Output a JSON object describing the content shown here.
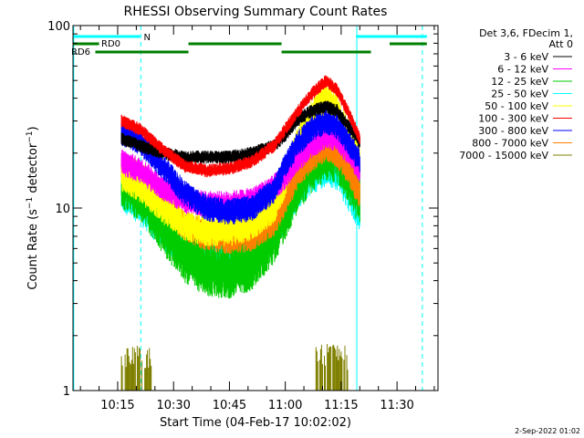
{
  "chart_data": {
    "type": "line",
    "title": "RHESSI Observing Summary Count Rates",
    "xlabel": "Start Time (04-Feb-17 10:02:02)",
    "ylabel": "Count Rate (s⁻¹ detector⁻¹)",
    "ylabel_parts": [
      "Count Rate (s",
      "−1",
      " detector",
      "−1",
      ")"
    ],
    "x_range_min": [
      3.0,
      101.0
    ],
    "x_ticks": [
      {
        "min": 15,
        "label": "10:15"
      },
      {
        "min": 30,
        "label": "10:30"
      },
      {
        "min": 45,
        "label": "10:45"
      },
      {
        "min": 60,
        "label": "11:00"
      },
      {
        "min": 75,
        "label": "11:15"
      },
      {
        "min": 90,
        "label": "11:30"
      }
    ],
    "y_scale": "log",
    "ylim": [
      1,
      100
    ],
    "y_ticks": [
      {
        "value": 1,
        "label": "1"
      },
      {
        "value": 10,
        "label": "10"
      },
      {
        "value": 100,
        "label": "100"
      }
    ],
    "legend_header": [
      "Det 3,6, FDecim 1,",
      "Att 0"
    ],
    "series": [
      {
        "name": "3 - 6 keV",
        "color": "#000000",
        "x": [
          16,
          21,
          27,
          33,
          39,
          45,
          51,
          57,
          60,
          63,
          67,
          71,
          74,
          77,
          80
        ],
        "values": [
          24,
          22,
          20,
          19,
          19,
          19,
          20,
          22,
          25,
          30,
          34,
          36,
          34,
          28,
          23
        ]
      },
      {
        "name": "6 - 12 keV",
        "color": "#ff00ff",
        "x": [
          16,
          21,
          27,
          33,
          39,
          45,
          51,
          57,
          60,
          63,
          67,
          71,
          74,
          77,
          80
        ],
        "values": [
          18,
          16,
          13,
          11,
          10.5,
          10.5,
          11,
          13,
          15,
          18,
          22,
          25,
          24,
          20,
          16
        ]
      },
      {
        "name": "12 - 25 keV",
        "color": "#00cc00",
        "x": [
          16,
          21,
          27,
          33,
          39,
          45,
          51,
          57,
          60,
          63,
          67,
          71,
          74,
          77,
          80
        ],
        "values": [
          14,
          12,
          8,
          5.5,
          4.6,
          4.5,
          5,
          7,
          9.5,
          13,
          17,
          20,
          19,
          15,
          11
        ]
      },
      {
        "name": "25 - 50 keV",
        "color": "#00ffff",
        "x": [
          16,
          21,
          27,
          33,
          39,
          45,
          51,
          57,
          60,
          63,
          67,
          71,
          74,
          77,
          80
        ],
        "values": [
          13,
          11,
          8,
          6.5,
          6,
          6,
          6.5,
          8,
          10,
          13,
          16,
          18,
          17,
          13,
          10
        ]
      },
      {
        "name": "50 - 100 keV",
        "color": "#ffff00",
        "x": [
          16,
          21,
          27,
          33,
          39,
          45,
          51,
          57,
          60,
          63,
          67,
          71,
          74,
          77,
          80
        ],
        "values": [
          15,
          13,
          10,
          8,
          7.5,
          7.5,
          8,
          10,
          14,
          22,
          32,
          40,
          34,
          25,
          18
        ]
      },
      {
        "name": "100 - 300 keV",
        "color": "#ff0000",
        "x": [
          16,
          21,
          27,
          33,
          39,
          45,
          51,
          57,
          60,
          63,
          67,
          71,
          74,
          77,
          80
        ],
        "values": [
          30,
          27,
          21,
          17,
          16,
          16.5,
          18,
          22,
          27,
          33,
          42,
          50,
          44,
          33,
          24
        ]
      },
      {
        "name": "300 - 800 keV",
        "color": "#0000ff",
        "x": [
          16,
          21,
          27,
          33,
          39,
          45,
          51,
          57,
          60,
          63,
          67,
          71,
          74,
          77,
          80
        ],
        "values": [
          26,
          23,
          17,
          12,
          10,
          9.5,
          10,
          12.5,
          17,
          22,
          27,
          30,
          28,
          23,
          18
        ]
      },
      {
        "name": "800 - 7000 keV",
        "color": "#ff8000",
        "x": [
          16,
          21,
          27,
          33,
          39,
          45,
          51,
          57,
          60,
          63,
          67,
          71,
          74,
          77,
          80
        ],
        "values": [
          17,
          15,
          11,
          8,
          7,
          6.8,
          7,
          8.5,
          11,
          15,
          19,
          22,
          20,
          16,
          12
        ]
      },
      {
        "name": "7000 - 15000 keV",
        "color": "#808000",
        "x": [
          16,
          20,
          24
        ],
        "values": [
          1.5,
          1.6,
          1.5
        ],
        "x2": [
          68,
          71,
          74,
          77
        ],
        "values2": [
          1.5,
          1.6,
          1.6,
          1.5
        ]
      }
    ],
    "flags": [
      {
        "label": "N",
        "color": "#00ffff",
        "segments": [
          [
            3,
            21
          ],
          [
            79,
            98
          ]
        ],
        "level": 1
      },
      {
        "label": "RD0",
        "color": "#008000",
        "segments": [
          [
            3,
            10
          ],
          [
            34,
            59
          ],
          [
            88,
            98
          ]
        ],
        "level": 2
      },
      {
        "label": "RD6",
        "color": "#008000",
        "segments": [
          [
            9,
            34
          ],
          [
            59,
            83
          ]
        ],
        "level": 3
      }
    ],
    "solid_lines_min": [
      3.2,
      79.2
    ],
    "dashed_lines_min": [
      21.2,
      96.8
    ],
    "grid": false,
    "legend_position": "right"
  },
  "footer": {
    "timestamp": "2-Sep-2022 01:02"
  }
}
